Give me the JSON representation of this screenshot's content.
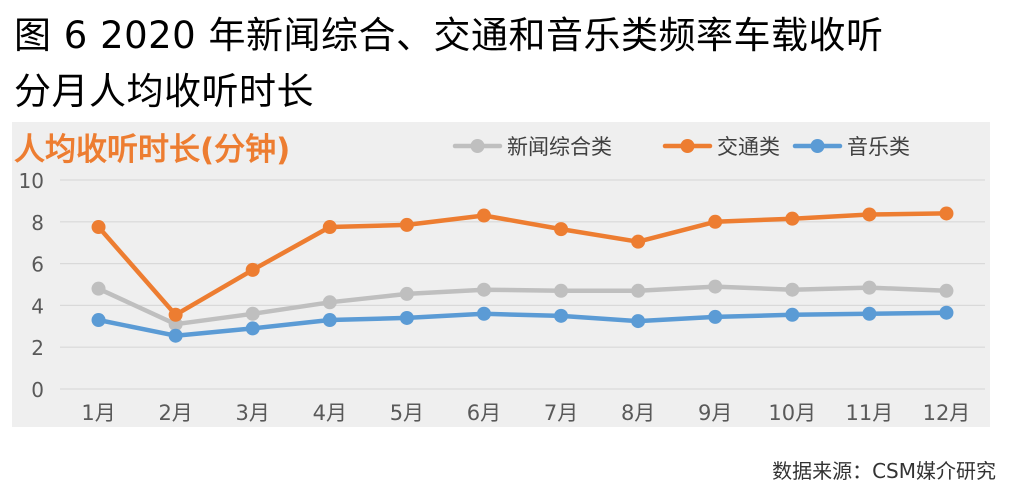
{
  "title": {
    "line1": "图 6   2020 年新闻综合、交通和音乐类频率车载收听",
    "line2": "分月人均收听时长"
  },
  "source_note": "数据来源：CSM媒介研究",
  "colors": {
    "background": "#efefef",
    "grid": "#d9d9d9",
    "unit_label": "#ed7d31"
  },
  "chart_data": {
    "type": "line",
    "ylabel": "人均收听时长(分钟)",
    "legend_position": "top-right",
    "ylim": [
      0,
      10
    ],
    "yticks": [
      "0",
      "2",
      "4",
      "6",
      "8",
      "10"
    ],
    "grid": true,
    "categories": [
      "1月",
      "2月",
      "3月",
      "4月",
      "5月",
      "6月",
      "7月",
      "8月",
      "9月",
      "10月",
      "11月",
      "12月"
    ],
    "series": [
      {
        "name": "新闻综合类",
        "color": "#bfbfbf",
        "values": [
          4.8,
          3.1,
          3.6,
          4.15,
          4.55,
          4.75,
          4.7,
          4.7,
          4.9,
          4.75,
          4.85,
          4.7
        ]
      },
      {
        "name": "交通类",
        "color": "#ed7d31",
        "values": [
          7.75,
          3.55,
          5.7,
          7.75,
          7.85,
          8.3,
          7.65,
          7.05,
          8.0,
          8.15,
          8.35,
          8.4
        ]
      },
      {
        "name": "音乐类",
        "color": "#5b9bd5",
        "values": [
          3.3,
          2.55,
          2.9,
          3.3,
          3.4,
          3.6,
          3.5,
          3.25,
          3.45,
          3.55,
          3.6,
          3.65
        ]
      }
    ]
  }
}
